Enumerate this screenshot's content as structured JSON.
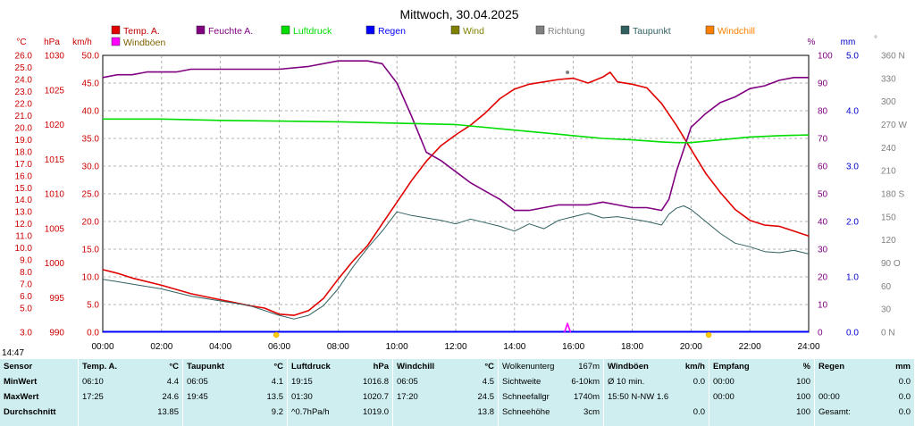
{
  "title": "Mittwoch, 30.04.2025",
  "chart_data": {
    "type": "line",
    "title": "Mittwoch, 30.04.2025",
    "x_ticks": [
      "00:00",
      "02:00",
      "04:00",
      "06:00",
      "08:00",
      "10:00",
      "12:00",
      "14:00",
      "16:00",
      "18:00",
      "20:00",
      "22:00",
      "24:00"
    ],
    "xlim": [
      0,
      24
    ],
    "grid": true,
    "legend_position": "top",
    "legend": [
      {
        "name": "Temp. A.",
        "color": "#e00000"
      },
      {
        "name": "Feuchte A.",
        "color": "#800080"
      },
      {
        "name": "Luftdruck",
        "color": "#00dd00"
      },
      {
        "name": "Regen",
        "color": "#0000ff"
      },
      {
        "name": "Wind",
        "color": "#808000"
      },
      {
        "name": "Richtung",
        "color": "#808080"
      },
      {
        "name": "Taupunkt",
        "color": "#306060"
      },
      {
        "name": "Windchill",
        "color": "#ff8000"
      },
      {
        "name": "Windböen",
        "color": "#ff00ff"
      }
    ],
    "axes": {
      "temp": {
        "unit": "°C",
        "color": "#cc0000",
        "min": 3.0,
        "max": 26.0,
        "ticks": [
          "26.0",
          "25.0",
          "24.0",
          "23.0",
          "22.0",
          "21.0",
          "20.0",
          "19.0",
          "18.0",
          "17.0",
          "16.0",
          "15.0",
          "14.0",
          "13.0",
          "12.0",
          "11.0",
          "10.0",
          "9.0",
          "8.0",
          "7.0",
          "6.0",
          "5.0",
          "3.0"
        ]
      },
      "pressure": {
        "unit": "hPa",
        "color": "#cc0000",
        "min": 990,
        "max": 1030,
        "ticks": [
          "1030",
          "1025",
          "1020",
          "1015",
          "1010",
          "1005",
          "1000",
          "995",
          "990"
        ]
      },
      "wind": {
        "unit": "km/h",
        "color": "#cc0000",
        "min": 0,
        "max": 50,
        "ticks": [
          "50.0",
          "45.0",
          "40.0",
          "35.0",
          "30.0",
          "25.0",
          "20.0",
          "15.0",
          "10.0",
          "5.0",
          "0.0"
        ]
      },
      "humidity": {
        "unit": "%",
        "color": "#800080",
        "min": 0,
        "max": 100,
        "ticks": [
          "100",
          "90",
          "80",
          "70",
          "60",
          "50",
          "40",
          "30",
          "20",
          "10",
          "0"
        ]
      },
      "rain": {
        "unit": "mm",
        "color": "#0000cc",
        "min": 0,
        "max": 5,
        "ticks": [
          "5.0",
          "4.0",
          "3.0",
          "2.0",
          "1.0",
          "0.0"
        ]
      },
      "direction": {
        "unit": "°",
        "color": "#808080",
        "min": 0,
        "max": 360,
        "ticks": [
          "360 N",
          "330",
          "300",
          "270 W",
          "240",
          "210",
          "180 S",
          "150",
          "120",
          "90 O",
          "60",
          "30",
          "0 N"
        ]
      }
    },
    "series": [
      {
        "name": "Temp. A.",
        "axis": "temp",
        "color": "#e00000",
        "x": [
          0,
          0.5,
          1,
          2,
          3,
          4,
          5,
          5.5,
          6,
          6.5,
          7,
          7.5,
          8,
          8.5,
          9,
          9.5,
          10,
          10.5,
          11,
          11.5,
          12,
          12.5,
          13,
          13.5,
          14,
          14.5,
          15,
          15.5,
          16,
          16.5,
          17,
          17.25,
          17.5,
          18,
          18.5,
          19,
          19.5,
          20,
          20.5,
          21,
          21.5,
          22,
          22.5,
          23,
          23.5,
          24
        ],
        "y": [
          8.2,
          7.9,
          7.5,
          6.9,
          6.2,
          5.7,
          5.2,
          5.0,
          4.5,
          4.4,
          4.8,
          5.8,
          7.4,
          8.9,
          10.2,
          12.0,
          13.8,
          15.6,
          17.2,
          18.5,
          19.4,
          20.2,
          21.2,
          22.4,
          23.2,
          23.6,
          23.8,
          24.0,
          24.1,
          23.7,
          24.2,
          24.6,
          23.8,
          23.6,
          23.3,
          22.0,
          20.2,
          18.2,
          16.2,
          14.6,
          13.2,
          12.3,
          11.9,
          11.8,
          11.4,
          11.0
        ]
      },
      {
        "name": "Feuchte A.",
        "axis": "humidity",
        "color": "#800080",
        "x": [
          0,
          0.5,
          1,
          1.5,
          2,
          2.5,
          3,
          4,
          5,
          6,
          7,
          8,
          8.5,
          9,
          9.5,
          10,
          10.5,
          11,
          11.5,
          12,
          12.5,
          13,
          13.5,
          14,
          14.5,
          15,
          15.5,
          16,
          16.5,
          17,
          17.5,
          18,
          18.5,
          19,
          19.25,
          19.5,
          20,
          20.5,
          21,
          21.5,
          22,
          22.5,
          23,
          23.5,
          24
        ],
        "y": [
          92,
          93,
          93,
          94,
          94,
          94,
          95,
          95,
          95,
          95,
          96,
          98,
          98,
          98,
          97,
          90,
          78,
          65,
          62,
          58,
          54,
          51,
          48,
          44,
          44,
          45,
          46,
          46,
          46,
          47,
          46,
          45,
          45,
          44,
          48,
          58,
          74,
          79,
          83,
          85,
          88,
          89,
          91,
          92,
          92
        ]
      },
      {
        "name": "Luftdruck",
        "axis": "pressure",
        "color": "#00dd00",
        "x": [
          0,
          2,
          4,
          6,
          8,
          10,
          12,
          14,
          16,
          17,
          18,
          19,
          19.5,
          20,
          21,
          22,
          23,
          24
        ],
        "y": [
          1020.8,
          1020.8,
          1020.6,
          1020.5,
          1020.4,
          1020.2,
          1020.0,
          1019.2,
          1018.4,
          1018.0,
          1017.8,
          1017.5,
          1017.4,
          1017.4,
          1017.8,
          1018.2,
          1018.4,
          1018.5
        ]
      },
      {
        "name": "Taupunkt",
        "axis": "temp",
        "color": "#306060",
        "x": [
          0,
          1,
          2,
          3,
          4,
          5,
          6,
          6.5,
          7,
          7.5,
          8,
          8.5,
          9,
          9.5,
          10,
          10.5,
          11,
          11.5,
          12,
          12.5,
          13,
          13.5,
          14,
          14.5,
          15,
          15.5,
          16,
          16.5,
          17,
          17.5,
          18,
          18.5,
          19,
          19.25,
          19.5,
          19.75,
          20,
          20.5,
          21,
          21.5,
          22,
          22.5,
          23,
          23.5,
          24
        ],
        "y": [
          7.4,
          7.0,
          6.6,
          6.0,
          5.6,
          5.2,
          4.4,
          4.1,
          4.4,
          5.2,
          6.6,
          8.4,
          10.0,
          11.4,
          13.0,
          12.7,
          12.5,
          12.3,
          12.0,
          12.4,
          12.1,
          11.8,
          11.4,
          12.0,
          11.6,
          12.3,
          12.6,
          12.9,
          12.5,
          12.6,
          12.4,
          12.2,
          11.9,
          12.8,
          13.3,
          13.5,
          13.2,
          12.2,
          11.2,
          10.4,
          10.1,
          9.7,
          9.6,
          9.8,
          9.5
        ]
      },
      {
        "name": "Windböen",
        "axis": "wind",
        "color": "#ff00ff",
        "x": [
          15.7,
          15.8,
          15.9
        ],
        "y": [
          0,
          1.6,
          0
        ]
      },
      {
        "name": "Richtung",
        "axis": "direction",
        "color": "#808080",
        "x": [
          15.8
        ],
        "y": [
          338
        ]
      }
    ],
    "markers": [
      {
        "x": 5.9,
        "label": "sunrise"
      },
      {
        "x": 20.6,
        "label": "sunset"
      }
    ]
  },
  "time_now": "14:47",
  "table": [
    {
      "hdr": [
        "Sensor",
        ""
      ],
      "rows": [
        [
          "MinWert",
          ""
        ],
        [
          "MaxWert",
          ""
        ],
        [
          "Durchschnitt",
          ""
        ]
      ]
    },
    {
      "hdr": [
        "Temp. A.",
        "°C"
      ],
      "rows": [
        [
          "06:10",
          "4.4"
        ],
        [
          "17:25",
          "24.6"
        ],
        [
          "",
          "13.85"
        ]
      ]
    },
    {
      "hdr": [
        "Taupunkt",
        "°C"
      ],
      "rows": [
        [
          "06:05",
          "4.1"
        ],
        [
          "19:45",
          "13.5"
        ],
        [
          "",
          "9.2"
        ]
      ]
    },
    {
      "hdr": [
        "Luftdruck",
        "hPa"
      ],
      "rows": [
        [
          "19:15",
          "1016.8"
        ],
        [
          "01:30",
          "1020.7"
        ],
        [
          "^0.7hPa/h",
          "1019.0"
        ]
      ]
    },
    {
      "hdr": [
        "Windchill",
        "°C"
      ],
      "rows": [
        [
          "06:05",
          "4.5"
        ],
        [
          "17:20",
          "24.5"
        ],
        [
          "",
          "13.8"
        ]
      ]
    },
    {
      "hdr": [
        "Wolkenunterg",
        "167m"
      ],
      "rows": [
        [
          "Sichtweite",
          "6-10km"
        ],
        [
          "Schneefallgr",
          "1740m"
        ],
        [
          "Schneehöhe",
          "3cm"
        ]
      ]
    },
    {
      "hdr": [
        "Windböen",
        "km/h"
      ],
      "rows": [
        [
          "Ø 10 min.",
          "0.0"
        ],
        [
          "15:50    N-NW 1.6",
          ""
        ],
        [
          "",
          "0.0"
        ]
      ]
    },
    {
      "hdr": [
        "Empfang",
        "%"
      ],
      "rows": [
        [
          "00:00",
          "100"
        ],
        [
          "00:00",
          "100"
        ],
        [
          "",
          "100"
        ]
      ]
    },
    {
      "hdr": [
        "Regen",
        "mm"
      ],
      "rows": [
        [
          "",
          "0.0"
        ],
        [
          "00:00",
          "0.0"
        ],
        [
          "Gesamt:",
          "0.0"
        ]
      ]
    }
  ]
}
